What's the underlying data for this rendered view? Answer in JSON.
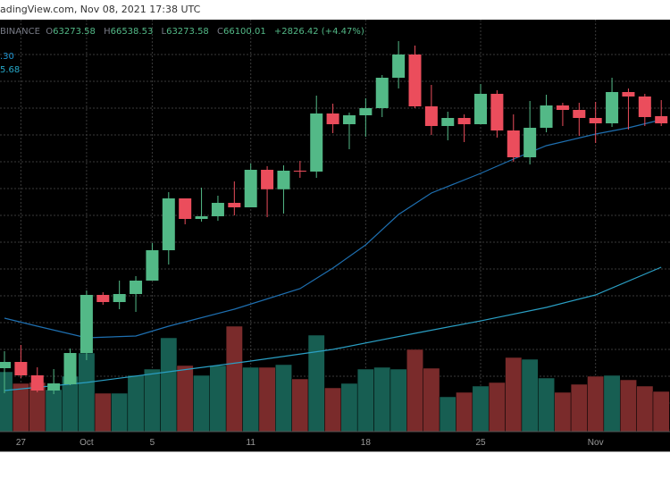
{
  "header": {
    "source_text": "adingView.com, Nov 08, 2021 17:38 UTC"
  },
  "legend": {
    "exchange": "BINANCE",
    "open_label": "O",
    "open": "63273.58",
    "high_label": "H",
    "high": "66538.53",
    "low_label": "L",
    "low": "63273.58",
    "close_label": "C",
    "close": "66100.01",
    "change": "+2826.42 (+4.47%)"
  },
  "ma_labels": [
    {
      "text": ".30",
      "color": "#2196d3"
    },
    {
      "text": "5.68",
      "color": "#26a8c8"
    }
  ],
  "colors": {
    "up": "#53b987",
    "down": "#eb4d5c",
    "vol_up": "#175e52",
    "vol_down": "#7a2b2b",
    "ma1": "#1e6fb0",
    "ma2": "#2a9fc4",
    "background": "#000000",
    "grid": "#3a3a3a"
  },
  "chart_data": {
    "type": "candlestick",
    "grid": true,
    "start_date": "2021-09-26",
    "x_tick_labels": [
      {
        "label": "27",
        "index": 1
      },
      {
        "label": "Oct",
        "index": 5
      },
      {
        "label": "5",
        "index": 9
      },
      {
        "label": "11",
        "index": 15
      },
      {
        "label": "18",
        "index": 22
      },
      {
        "label": "25",
        "index": 29
      },
      {
        "label": "Nov",
        "index": 36
      }
    ],
    "ohlc": [
      [
        43027,
        44271,
        41193,
        43485
      ],
      [
        43485,
        44730,
        42306,
        42503
      ],
      [
        42503,
        43092,
        41259,
        41390
      ],
      [
        41390,
        42962,
        41127,
        41913
      ],
      [
        41848,
        44468,
        41782,
        44140
      ],
      [
        44140,
        48725,
        43617,
        48398
      ],
      [
        48398,
        48594,
        47678,
        47874
      ],
      [
        47874,
        49446,
        47350,
        48463
      ],
      [
        48463,
        49773,
        47153,
        49446
      ],
      [
        49446,
        52197,
        49446,
        51673
      ],
      [
        51673,
        55930,
        50625,
        55472
      ],
      [
        55472,
        55472,
        53573,
        53966
      ],
      [
        53966,
        56258,
        53769,
        54162
      ],
      [
        54162,
        55669,
        53835,
        55145
      ],
      [
        55145,
        56717,
        54228,
        54817
      ],
      [
        54817,
        58027,
        54817,
        57568
      ],
      [
        57568,
        57830,
        54097,
        56139
      ],
      [
        56139,
        57896,
        54359,
        57503
      ],
      [
        57503,
        58223,
        56979,
        57437
      ],
      [
        57437,
        63005,
        56979,
        61695
      ],
      [
        61695,
        62415,
        60254,
        60909
      ],
      [
        60909,
        61760,
        59075,
        61563
      ],
      [
        61563,
        62808,
        59992,
        62088
      ],
      [
        62088,
        64511,
        61432,
        64315
      ],
      [
        64315,
        67000,
        63529,
        66018
      ],
      [
        66018,
        66673,
        62088,
        62219
      ],
      [
        62219,
        63791,
        60123,
        60778
      ],
      [
        60778,
        61825,
        59730,
        61367
      ],
      [
        61367,
        61629,
        59599,
        60909
      ],
      [
        60909,
        63856,
        60909,
        63136
      ],
      [
        63136,
        63398,
        59926,
        60450
      ],
      [
        60450,
        61629,
        58158,
        58485
      ],
      [
        58485,
        62612,
        57961,
        60647
      ],
      [
        60647,
        63070,
        60319,
        62284
      ],
      [
        62284,
        62481,
        60778,
        61957
      ],
      [
        61957,
        62481,
        60057,
        61367
      ],
      [
        61367,
        62546,
        59533,
        60974
      ],
      [
        60974,
        64315,
        60712,
        63267
      ],
      [
        63267,
        63529,
        60516,
        62940
      ],
      [
        62940,
        63136,
        60778,
        61432
      ],
      [
        61498,
        62677,
        60778,
        60974
      ]
    ],
    "volume": [
      67,
      54,
      55,
      47,
      62,
      88,
      43,
      43,
      63,
      70,
      105,
      74,
      63,
      74,
      118,
      72,
      72,
      75,
      59,
      108,
      49,
      54,
      70,
      72,
      70,
      92,
      71,
      39,
      44,
      51,
      55,
      83,
      81,
      60,
      44,
      53,
      62,
      63,
      58,
      51,
      45
    ],
    "ma1": [
      [
        0,
        46695
      ],
      [
        2,
        46105
      ],
      [
        5,
        45254
      ],
      [
        8,
        45385
      ],
      [
        10,
        46105
      ],
      [
        14,
        47350
      ],
      [
        18,
        48856
      ],
      [
        20,
        50363
      ],
      [
        22,
        52066
      ],
      [
        24,
        54293
      ],
      [
        26,
        55865
      ],
      [
        29,
        57306
      ],
      [
        31,
        58354
      ],
      [
        33,
        59337
      ],
      [
        36,
        60188
      ],
      [
        38,
        60647
      ],
      [
        40,
        61236
      ]
    ],
    "ma2": [
      [
        0,
        41390
      ],
      [
        5,
        41979
      ],
      [
        10,
        42765
      ],
      [
        15,
        43551
      ],
      [
        20,
        44403
      ],
      [
        25,
        45582
      ],
      [
        29,
        46496
      ],
      [
        33,
        47481
      ],
      [
        36,
        48398
      ],
      [
        40,
        50429
      ]
    ]
  }
}
